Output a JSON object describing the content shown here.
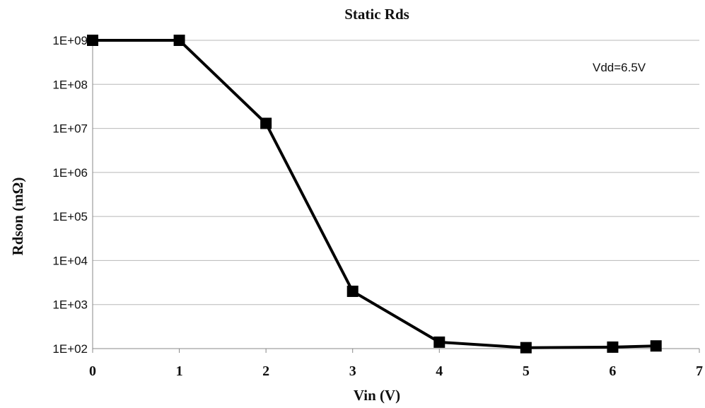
{
  "chart_data": {
    "type": "line",
    "title": "Static Rds",
    "xlabel": "Vin (V)",
    "ylabel": "Rdson (mΩ)",
    "xlim": [
      0,
      7
    ],
    "ylim": [
      100,
      1000000000
    ],
    "yscale": "log",
    "grid": true,
    "x_ticks": [
      "0",
      "1",
      "2",
      "3",
      "4",
      "5",
      "6",
      "7"
    ],
    "y_ticks": [
      "1E+02",
      "1E+03",
      "1E+04",
      "1E+05",
      "1E+06",
      "1E+07",
      "1E+08",
      "1E+09"
    ],
    "annotation": "Vdd=6.5V",
    "series": [
      {
        "x": [
          0,
          1,
          2,
          3,
          4,
          5,
          6,
          6.5
        ],
        "y": [
          1000000000,
          1000000000,
          13000000,
          2000,
          140,
          105,
          108,
          115
        ]
      }
    ],
    "colors": {
      "line": "#000000",
      "grid": "#b8b8b8"
    }
  }
}
